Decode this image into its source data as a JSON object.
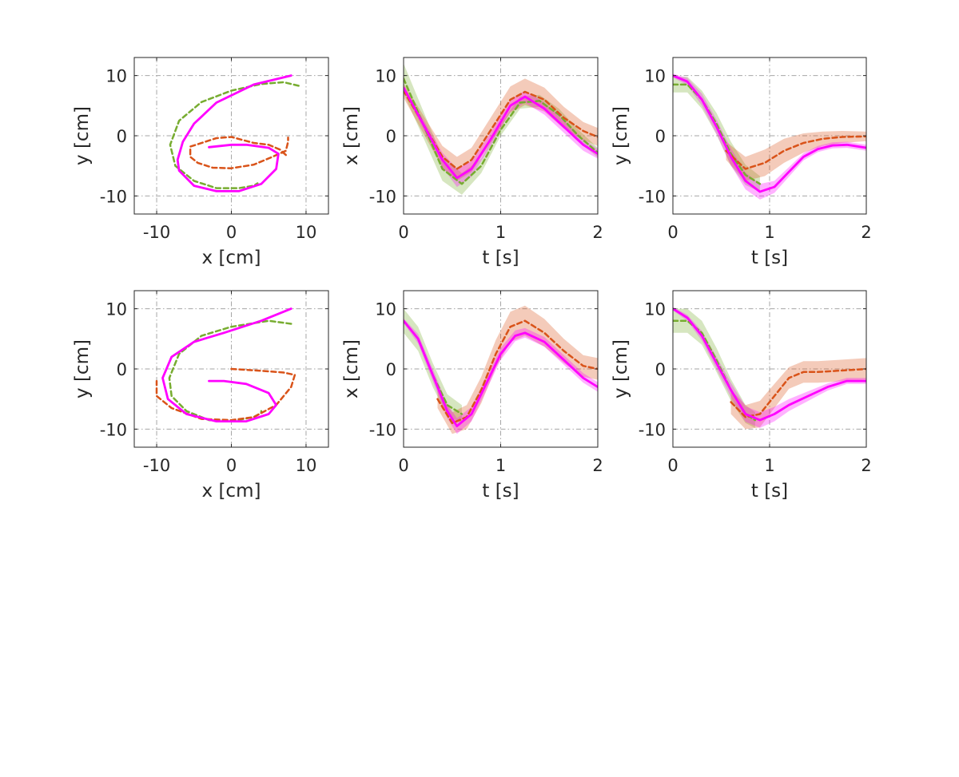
{
  "figure": {
    "colors": {
      "green": "#77AC30",
      "orange": "#D95319",
      "magenta": "#FF00FF",
      "grid": "#a6a6a6",
      "axis": "#262626"
    },
    "series_legend": [
      {
        "key": "green",
        "style": "dashed",
        "color": "#77AC30"
      },
      {
        "key": "orange",
        "style": "dashed",
        "color": "#D95319"
      },
      {
        "key": "magenta",
        "style": "solid",
        "color": "#FF00FF"
      }
    ]
  },
  "chart_data": [
    {
      "id": "r1c1",
      "type": "line",
      "xlabel": "x [cm]",
      "ylabel": "y [cm]",
      "xlim": [
        -13,
        13
      ],
      "ylim": [
        -13,
        13
      ],
      "xticks": [
        -10,
        0,
        10
      ],
      "xticklabels": [
        "-10",
        "0",
        "10"
      ],
      "yticks": [
        -10,
        0,
        10
      ],
      "yticklabels": [
        "-10",
        "0",
        "10"
      ],
      "series": [
        {
          "name": "green",
          "style": "dashed",
          "color": "#77AC30",
          "x": [
            9,
            7,
            4,
            0,
            -4,
            -7,
            -8.2,
            -7.5,
            -5,
            -2,
            1,
            3,
            3.5
          ],
          "y": [
            8.3,
            8.9,
            8.6,
            7.5,
            5.6,
            2.5,
            -1.5,
            -5,
            -7.5,
            -8.7,
            -8.7,
            -8.3,
            -7.9
          ]
        },
        {
          "name": "orange",
          "style": "dashed",
          "color": "#D95319",
          "x": [
            7.3,
            6.5,
            5,
            3,
            0,
            -2,
            -5.5,
            -5.5,
            -4.5,
            -2.5,
            0,
            3,
            5.5,
            7.3,
            7.6,
            7.6
          ],
          "y": [
            -3.2,
            -2.3,
            -1.5,
            -1.2,
            -0.2,
            -0.4,
            -1.8,
            -3.5,
            -4.5,
            -5.3,
            -5.4,
            -4.8,
            -3.5,
            -2.5,
            -1,
            -0.3
          ]
        },
        {
          "name": "magenta",
          "style": "solid",
          "color": "#FF00FF",
          "x": [
            8,
            3,
            -2,
            -5,
            -6.5,
            -7.2,
            -7,
            -5,
            -2,
            1,
            4,
            6,
            6.3,
            5,
            2,
            0,
            -3
          ],
          "y": [
            10,
            8.5,
            5.5,
            2,
            -1,
            -4,
            -5.8,
            -8.3,
            -9.2,
            -9.2,
            -8,
            -5.5,
            -3,
            -2,
            -1.5,
            -1.5,
            -1.9
          ]
        }
      ]
    },
    {
      "id": "r1c2",
      "type": "line",
      "xlabel": "t [s]",
      "ylabel": "x [cm]",
      "xlim": [
        0,
        2
      ],
      "ylim": [
        -13,
        13
      ],
      "xticks": [
        0,
        1,
        2
      ],
      "xticklabels": [
        "0",
        "1",
        "2"
      ],
      "yticks": [
        -10,
        0,
        10
      ],
      "yticklabels": [
        "-10",
        "0",
        "10"
      ],
      "series": [
        {
          "name": "green",
          "style": "dashed",
          "color": "#77AC30",
          "x": [
            0,
            0.2,
            0.4,
            0.6,
            0.8,
            1.0,
            1.2,
            1.4,
            1.6,
            1.8,
            2.0
          ],
          "y": [
            9.5,
            2,
            -5.5,
            -8,
            -5,
            1,
            5.5,
            5.8,
            3.5,
            0,
            -2.8
          ],
          "band": [
            2.5,
            2.2,
            2,
            1.8,
            1.2,
            1,
            1,
            1,
            1,
            1,
            0.8
          ]
        },
        {
          "name": "orange",
          "style": "dashed",
          "color": "#D95319",
          "x": [
            0,
            0.2,
            0.4,
            0.55,
            0.7,
            0.9,
            1.1,
            1.25,
            1.45,
            1.65,
            1.85,
            2.0
          ],
          "y": [
            7.5,
            2,
            -3.5,
            -5.5,
            -4,
            1,
            6,
            7.3,
            6,
            3,
            0.8,
            -0.2
          ],
          "band": [
            1.2,
            1.5,
            1.8,
            2,
            2,
            2.1,
            2.2,
            2.2,
            2,
            1.8,
            1.5,
            1.5
          ]
        },
        {
          "name": "magenta",
          "style": "solid",
          "color": "#FF00FF",
          "x": [
            0,
            0.2,
            0.4,
            0.55,
            0.7,
            0.9,
            1.1,
            1.25,
            1.45,
            1.65,
            1.85,
            2.0
          ],
          "y": [
            8,
            2,
            -4,
            -7,
            -5.5,
            -0.5,
            5,
            6.5,
            4.5,
            1.5,
            -1.5,
            -3
          ],
          "band": [
            0.3,
            0.8,
            1.2,
            1.5,
            1.3,
            1.1,
            1,
            1,
            1,
            1,
            1,
            0.8
          ]
        }
      ]
    },
    {
      "id": "r1c3",
      "type": "line",
      "xlabel": "t [s]",
      "ylabel": "y [cm]",
      "xlim": [
        0,
        2
      ],
      "ylim": [
        -13,
        13
      ],
      "xticks": [
        0,
        1,
        2
      ],
      "xticklabels": [
        "0",
        "1",
        "2"
      ],
      "yticks": [
        -10,
        0,
        10
      ],
      "yticklabels": [
        "-10",
        "0",
        "10"
      ],
      "series": [
        {
          "name": "green",
          "style": "dashed",
          "color": "#77AC30",
          "x": [
            0,
            0.15,
            0.3,
            0.45,
            0.6,
            0.75,
            0.9
          ],
          "y": [
            8.5,
            8.5,
            6,
            2,
            -3,
            -6.5,
            -8
          ],
          "band": [
            1.3,
            1.3,
            1.5,
            1.8,
            2,
            1.7,
            1.3
          ]
        },
        {
          "name": "orange",
          "style": "dashed",
          "color": "#D95319",
          "x": [
            0.55,
            0.75,
            0.95,
            1.15,
            1.35,
            1.55,
            1.75,
            2.0
          ],
          "y": [
            -2.5,
            -5.5,
            -4.5,
            -2.5,
            -1.2,
            -0.5,
            -0.2,
            -0.1
          ],
          "band": [
            1.5,
            2,
            2.2,
            2,
            1.6,
            1.2,
            1,
            0.8
          ]
        },
        {
          "name": "magenta",
          "style": "solid",
          "color": "#FF00FF",
          "x": [
            0,
            0.15,
            0.3,
            0.45,
            0.6,
            0.75,
            0.9,
            1.05,
            1.2,
            1.35,
            1.5,
            1.65,
            1.8,
            2.0
          ],
          "y": [
            10,
            9,
            6,
            1.5,
            -3.5,
            -7.5,
            -9.3,
            -8.5,
            -6,
            -3.5,
            -2.2,
            -1.6,
            -1.5,
            -2
          ],
          "band": [
            0.3,
            0.6,
            1,
            1.2,
            1.4,
            1.4,
            1.3,
            1,
            0.8,
            0.6,
            0.5,
            0.5,
            0.5,
            0.5
          ]
        }
      ]
    },
    {
      "id": "r2c1",
      "type": "line",
      "xlabel": "x [cm]",
      "ylabel": "y [cm]",
      "xlim": [
        -13,
        13
      ],
      "ylim": [
        -13,
        13
      ],
      "xticks": [
        -10,
        0,
        10
      ],
      "xticklabels": [
        "-10",
        "0",
        "10"
      ],
      "yticks": [
        -10,
        0,
        10
      ],
      "yticklabels": [
        "-10",
        "0",
        "10"
      ],
      "series": [
        {
          "name": "green",
          "style": "dashed",
          "color": "#77AC30",
          "x": [
            8,
            5,
            0,
            -4,
            -7,
            -8.3,
            -8,
            -6,
            -3,
            0,
            3,
            4,
            4
          ],
          "y": [
            7.5,
            8,
            7,
            5.5,
            2.5,
            -1.5,
            -4.5,
            -7,
            -8.5,
            -8.7,
            -8,
            -7.3,
            -7
          ]
        },
        {
          "name": "orange",
          "style": "dashed",
          "color": "#D95319",
          "x": [
            0,
            4,
            7,
            8.5,
            8,
            6,
            3,
            0,
            -4,
            -8,
            -10,
            -10
          ],
          "y": [
            0,
            -0.3,
            -0.6,
            -1,
            -3,
            -6,
            -8,
            -8.5,
            -8.3,
            -6.5,
            -4.5,
            -2
          ]
        },
        {
          "name": "magenta",
          "style": "solid",
          "color": "#FF00FF",
          "x": [
            8,
            4,
            -1,
            -5,
            -8,
            -9.2,
            -8.5,
            -6,
            -2,
            2,
            5,
            6,
            5,
            2,
            -1,
            -3
          ],
          "y": [
            10,
            8,
            6,
            4.5,
            2,
            -1.5,
            -5,
            -7.5,
            -8.7,
            -8.7,
            -7.5,
            -6,
            -4,
            -2.5,
            -2,
            -2
          ]
        }
      ]
    },
    {
      "id": "r2c2",
      "type": "line",
      "xlabel": "t [s]",
      "ylabel": "x [cm]",
      "xlim": [
        0,
        2
      ],
      "ylim": [
        -13,
        13
      ],
      "xticks": [
        0,
        1,
        2
      ],
      "xticklabels": [
        "0",
        "1",
        "2"
      ],
      "yticks": [
        -10,
        0,
        10
      ],
      "yticklabels": [
        "-10",
        "0",
        "10"
      ],
      "series": [
        {
          "name": "green",
          "style": "dashed",
          "color": "#77AC30",
          "x": [
            0,
            0.15,
            0.3,
            0.45,
            0.6
          ],
          "y": [
            8,
            5,
            -1,
            -6,
            -7.5
          ],
          "band": [
            2,
            2,
            2,
            1.8,
            1.5
          ]
        },
        {
          "name": "orange",
          "style": "dashed",
          "color": "#D95319",
          "x": [
            0.35,
            0.5,
            0.65,
            0.8,
            0.95,
            1.1,
            1.25,
            1.45,
            1.65,
            1.85,
            2.0
          ],
          "y": [
            -5,
            -9,
            -8,
            -3.5,
            2.5,
            7,
            8,
            6,
            3,
            0.5,
            0
          ],
          "band": [
            1.5,
            1.8,
            2,
            2.2,
            2.3,
            2.5,
            2.5,
            2.3,
            2,
            1.8,
            1.8
          ]
        },
        {
          "name": "magenta",
          "style": "solid",
          "color": "#FF00FF",
          "x": [
            0,
            0.15,
            0.3,
            0.45,
            0.55,
            0.7,
            0.85,
            1.0,
            1.15,
            1.25,
            1.45,
            1.65,
            1.85,
            2.0
          ],
          "y": [
            8,
            5,
            -1,
            -7,
            -9.5,
            -7.5,
            -2.5,
            2.5,
            5.5,
            6,
            4.5,
            1.5,
            -1.5,
            -3
          ],
          "band": [
            0.4,
            0.8,
            1,
            1.2,
            1.3,
            1.2,
            1.1,
            1,
            0.9,
            0.8,
            0.8,
            0.8,
            0.8,
            0.8
          ]
        }
      ]
    },
    {
      "id": "r2c3",
      "type": "line",
      "xlabel": "t [s]",
      "ylabel": "y [cm]",
      "xlim": [
        0,
        2
      ],
      "ylim": [
        -13,
        13
      ],
      "xticks": [
        0,
        1,
        2
      ],
      "xticklabels": [
        "0",
        "1",
        "2"
      ],
      "yticks": [
        -10,
        0,
        10
      ],
      "yticklabels": [
        "-10",
        "0",
        "10"
      ],
      "series": [
        {
          "name": "green",
          "style": "dashed",
          "color": "#77AC30",
          "x": [
            0,
            0.15,
            0.3,
            0.45,
            0.6,
            0.75,
            0.85
          ],
          "y": [
            8,
            8,
            6,
            1.5,
            -3.5,
            -7.5,
            -8.5
          ],
          "band": [
            2,
            2,
            2,
            2,
            1.8,
            1.5,
            1.3
          ]
        },
        {
          "name": "orange",
          "style": "dashed",
          "color": "#D95319",
          "x": [
            0.6,
            0.75,
            0.9,
            1.05,
            1.2,
            1.35,
            1.5,
            1.7,
            2.0
          ],
          "y": [
            -5.5,
            -8,
            -7.5,
            -4.5,
            -1.5,
            -0.5,
            -0.5,
            -0.3,
            0
          ],
          "band": [
            2,
            2,
            2.2,
            2,
            1.8,
            1.8,
            1.8,
            1.8,
            1.8
          ]
        },
        {
          "name": "magenta",
          "style": "solid",
          "color": "#FF00FF",
          "x": [
            0,
            0.15,
            0.3,
            0.45,
            0.6,
            0.75,
            0.9,
            1.05,
            1.2,
            1.4,
            1.6,
            1.8,
            2.0
          ],
          "y": [
            10,
            8.5,
            5.5,
            1,
            -3.5,
            -7.5,
            -8.5,
            -7.5,
            -6,
            -4.5,
            -3,
            -2,
            -2
          ],
          "band": [
            0.3,
            0.5,
            0.8,
            1,
            1.2,
            1.3,
            1.3,
            1.2,
            1,
            0.8,
            0.6,
            0.5,
            0.5
          ]
        }
      ]
    }
  ]
}
